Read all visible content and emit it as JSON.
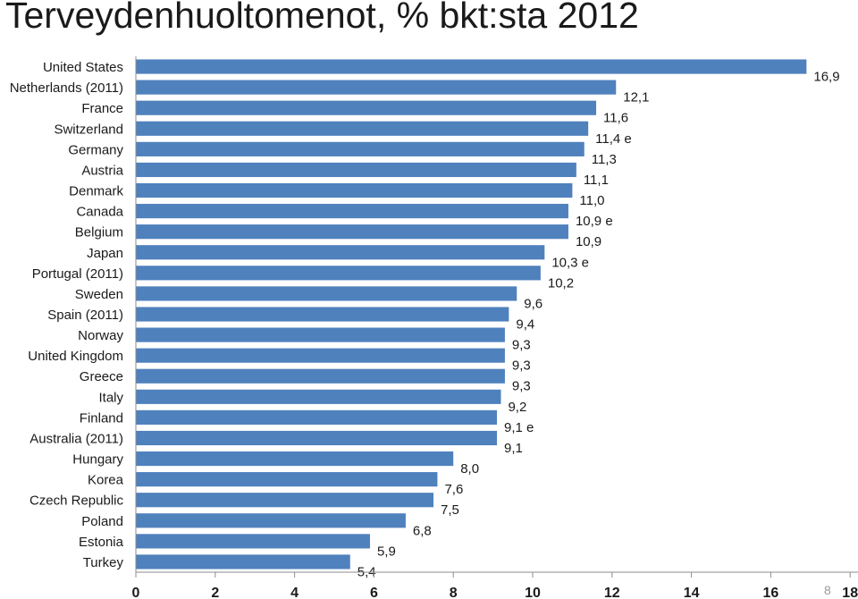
{
  "slide": {
    "title": "Terveydenhuoltomenot, % bkt:sta 2012",
    "number": "8"
  },
  "chart_data": {
    "type": "bar",
    "orientation": "horizontal",
    "title": "Terveydenhuoltomenot, % bkt:sta 2012",
    "xlabel": "",
    "ylabel": "",
    "xlim": [
      0,
      18
    ],
    "xticks": [
      "0",
      "2",
      "4",
      "6",
      "8",
      "10",
      "12",
      "14",
      "16",
      "18"
    ],
    "grid": false,
    "bar_color": "#4f81bd",
    "categories": [
      "United States",
      "Netherlands (2011)",
      "France",
      "Switzerland",
      "Germany",
      "Austria",
      "Denmark",
      "Canada",
      "Belgium",
      "Japan",
      "Portugal (2011)",
      "Sweden",
      "Spain (2011)",
      "Norway",
      "United Kingdom",
      "Greece",
      "Italy",
      "Finland",
      "Australia (2011)",
      "Hungary",
      "Korea",
      "Czech Republic",
      "Poland",
      "Estonia",
      "Turkey"
    ],
    "values": [
      16.9,
      12.1,
      11.6,
      11.4,
      11.3,
      11.1,
      11.0,
      10.9,
      10.9,
      10.3,
      10.2,
      9.6,
      9.4,
      9.3,
      9.3,
      9.3,
      9.2,
      9.1,
      9.1,
      8.0,
      7.6,
      7.5,
      6.8,
      5.9,
      5.4
    ],
    "data_labels": [
      "16,9",
      "12,1",
      "11,6",
      "11,4 e",
      "11,3",
      "11,1",
      "11,0",
      "10,9 e",
      "10,9",
      "10,3 e",
      "10,2",
      "9,6",
      "9,4",
      "9,3",
      "9,3",
      "9,3",
      "9,2",
      "9,1 e",
      "9,1",
      "8,0",
      "7,6",
      "7,5",
      "6,8",
      "5,9",
      "5,4"
    ]
  }
}
